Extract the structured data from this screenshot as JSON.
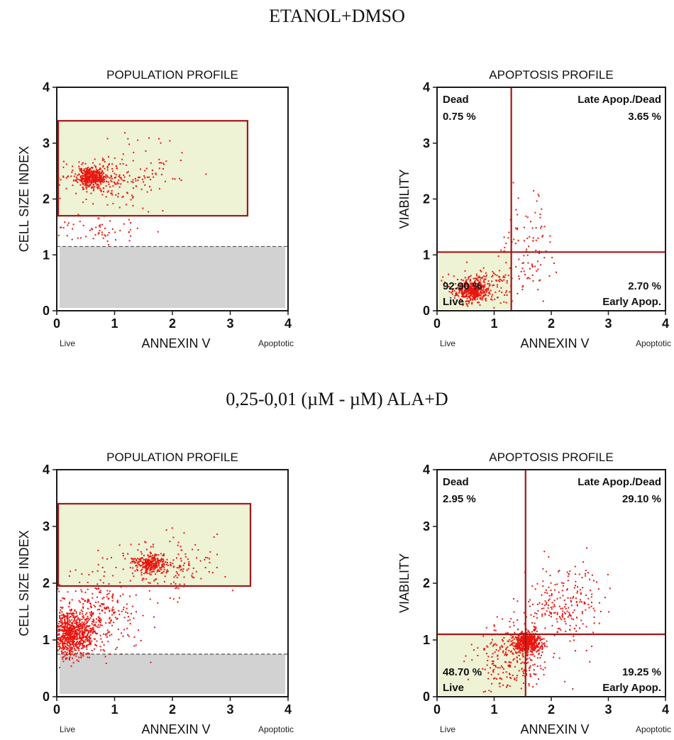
{
  "sections": [
    {
      "title": "ETANOL+DMSO"
    },
    {
      "title": "0,25-0,01 (µM - µM) ALA+D"
    }
  ],
  "colors": {
    "frame": "#1a1a1a",
    "gate_border": "#a01818",
    "gate_fill": "#eef3d5",
    "debris_fill": "#d2d2d2",
    "dots": "#e8160f",
    "quad_line": "#a01818"
  },
  "chart_data": [
    {
      "type": "scatter",
      "title": "POPULATION PROFILE",
      "xlabel": "ANNEXIN V",
      "ylabel": "CELL SIZE INDEX",
      "x_left_note": "Live",
      "x_right_note": "Apoptotic",
      "xlim": [
        0,
        4
      ],
      "ylim": [
        0,
        4
      ],
      "xticks": [
        "0",
        "1",
        "2",
        "3",
        "4"
      ],
      "yticks": [
        "0",
        "1",
        "2",
        "3",
        "4"
      ],
      "gate": {
        "x0": 0.0,
        "x1": 3.3,
        "y0": 1.7,
        "y1": 3.4
      },
      "debris_threshold": 1.15,
      "clusters": [
        {
          "cx": 0.6,
          "cy": 2.4,
          "sx": 0.12,
          "sy": 0.09,
          "n": 380
        },
        {
          "cx": 0.8,
          "cy": 2.4,
          "sx": 0.35,
          "sy": 0.22,
          "n": 160
        },
        {
          "cx": 1.5,
          "cy": 2.4,
          "sx": 0.35,
          "sy": 0.35,
          "n": 70
        },
        {
          "cx": 0.6,
          "cy": 1.45,
          "sx": 0.4,
          "sy": 0.12,
          "n": 60
        }
      ],
      "seed": 11
    },
    {
      "type": "scatter",
      "title": "APOPTOSIS PROFILE",
      "xlabel": "ANNEXIN V",
      "ylabel": "VIABILITY",
      "x_left_note": "Live",
      "x_right_note": "Apoptotic",
      "xlim": [
        0,
        4
      ],
      "ylim": [
        0,
        4
      ],
      "xticks": [
        "0",
        "1",
        "2",
        "3",
        "4"
      ],
      "yticks": [
        "0",
        "1",
        "2",
        "3",
        "4"
      ],
      "quadrant_x": 1.3,
      "quadrant_y": 1.05,
      "quadrants": {
        "dead_label": "Dead",
        "dead_pct": "0.75 %",
        "late_label": "Late Apop./Dead",
        "late_pct": "3.65 %",
        "live_label": "Live",
        "live_pct": "92.90 %",
        "early_label": "Early Apop.",
        "early_pct": "2.70 %"
      },
      "clusters": [
        {
          "cx": 0.6,
          "cy": 0.35,
          "sx": 0.13,
          "sy": 0.09,
          "n": 380
        },
        {
          "cx": 0.8,
          "cy": 0.45,
          "sx": 0.3,
          "sy": 0.2,
          "n": 150
        },
        {
          "cx": 1.6,
          "cy": 1.1,
          "sx": 0.25,
          "sy": 0.45,
          "n": 90
        }
      ],
      "seed": 23
    },
    {
      "type": "scatter",
      "title": "POPULATION PROFILE",
      "xlabel": "ANNEXIN V",
      "ylabel": "CELL SIZE INDEX",
      "x_left_note": "Live",
      "x_right_note": "Apoptotic",
      "xlim": [
        0,
        4
      ],
      "ylim": [
        0,
        4
      ],
      "xticks": [
        "0",
        "1",
        "2",
        "3",
        "4"
      ],
      "yticks": [
        "0",
        "1",
        "2",
        "3",
        "4"
      ],
      "gate": {
        "x0": 0.0,
        "x1": 3.35,
        "y0": 1.95,
        "y1": 3.4
      },
      "debris_threshold": 0.75,
      "clusters": [
        {
          "cx": 0.25,
          "cy": 1.1,
          "sx": 0.18,
          "sy": 0.2,
          "n": 750
        },
        {
          "cx": 0.6,
          "cy": 1.4,
          "sx": 0.4,
          "sy": 0.35,
          "n": 350
        },
        {
          "cx": 1.6,
          "cy": 2.35,
          "sx": 0.14,
          "sy": 0.08,
          "n": 280
        },
        {
          "cx": 1.9,
          "cy": 2.3,
          "sx": 0.45,
          "sy": 0.25,
          "n": 160
        }
      ],
      "seed": 37
    },
    {
      "type": "scatter",
      "title": "APOPTOSIS PROFILE",
      "xlabel": "ANNEXIN V",
      "ylabel": "VIABILITY",
      "x_left_note": "Live",
      "x_right_note": "Apoptotic",
      "xlim": [
        0,
        4
      ],
      "ylim": [
        0,
        4
      ],
      "xticks": [
        "0",
        "1",
        "2",
        "3",
        "4"
      ],
      "yticks": [
        "0",
        "1",
        "2",
        "3",
        "4"
      ],
      "quadrant_x": 1.55,
      "quadrant_y": 1.1,
      "quadrants": {
        "dead_label": "Dead",
        "dead_pct": "2.95 %",
        "late_label": "Late Apop./Dead",
        "late_pct": "29.10 %",
        "live_label": "Live",
        "live_pct": "48.70 %",
        "early_label": "Early Apop.",
        "early_pct": "19.25 %"
      },
      "clusters": [
        {
          "cx": 1.6,
          "cy": 0.95,
          "sx": 0.12,
          "sy": 0.09,
          "n": 500
        },
        {
          "cx": 1.3,
          "cy": 0.7,
          "sx": 0.35,
          "sy": 0.3,
          "n": 280
        },
        {
          "cx": 2.2,
          "cy": 1.6,
          "sx": 0.35,
          "sy": 0.35,
          "n": 240
        }
      ],
      "seed": 51
    }
  ]
}
